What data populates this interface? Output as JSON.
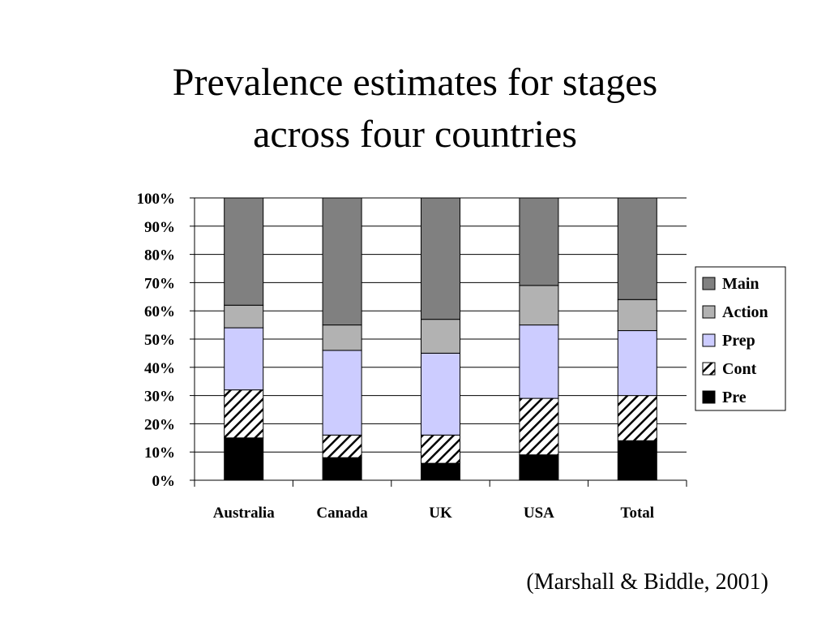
{
  "slide": {
    "title_line1": "Prevalence estimates for stages",
    "title_line2": "across four countries",
    "citation": "(Marshall & Biddle, 2001)"
  },
  "chart_data": {
    "type": "bar",
    "stacked": true,
    "percent": true,
    "categories": [
      "Australia",
      "Canada",
      "UK",
      "USA",
      "Total"
    ],
    "series": [
      {
        "name": "Pre",
        "values": [
          15,
          8,
          6,
          9,
          14
        ],
        "color": "#000000",
        "pattern": "solid"
      },
      {
        "name": "Cont",
        "values": [
          17,
          8,
          10,
          20,
          16
        ],
        "color": "#000000",
        "pattern": "diagonal-hatch"
      },
      {
        "name": "Prep",
        "values": [
          22,
          30,
          29,
          26,
          23
        ],
        "color": "#ccccff",
        "pattern": "solid"
      },
      {
        "name": "Action",
        "values": [
          8,
          9,
          12,
          14,
          11
        ],
        "color": "#b2b2b2",
        "pattern": "solid"
      },
      {
        "name": "Main",
        "values": [
          38,
          45,
          43,
          31,
          36
        ],
        "color": "#808080",
        "pattern": "solid"
      }
    ],
    "ylim": [
      0,
      100
    ],
    "yticks": [
      "0%",
      "10%",
      "20%",
      "30%",
      "40%",
      "50%",
      "60%",
      "70%",
      "80%",
      "90%",
      "100%"
    ],
    "grid": true,
    "legend_position": "right",
    "legend_order": [
      "Main",
      "Action",
      "Prep",
      "Cont",
      "Pre"
    ]
  }
}
